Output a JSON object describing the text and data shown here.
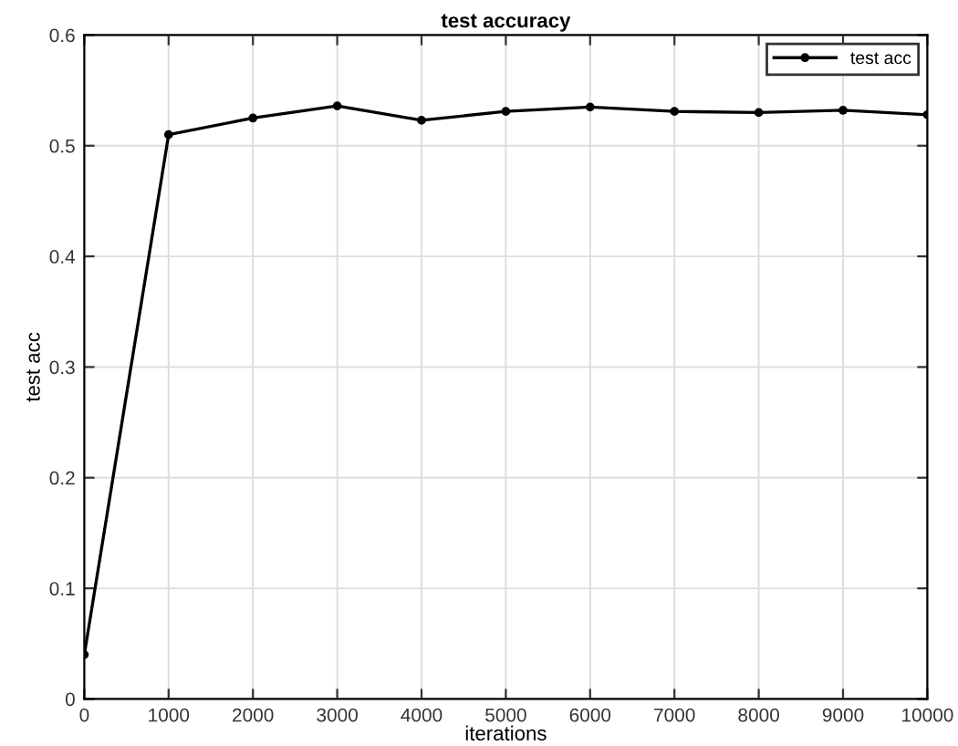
{
  "chart_data": {
    "type": "line",
    "title": "test accuracy",
    "xlabel": "iterations",
    "ylabel": "test acc",
    "x": [
      0,
      1000,
      2000,
      3000,
      4000,
      5000,
      6000,
      7000,
      8000,
      9000,
      10000
    ],
    "series": [
      {
        "name": "test acc",
        "color": "#000000",
        "values": [
          0.04,
          0.51,
          0.525,
          0.536,
          0.523,
          0.531,
          0.535,
          0.531,
          0.53,
          0.532,
          0.528
        ]
      }
    ],
    "xlim": [
      0,
      10000
    ],
    "ylim": [
      0,
      0.6
    ],
    "xticks": [
      0,
      1000,
      2000,
      3000,
      4000,
      5000,
      6000,
      7000,
      8000,
      9000,
      10000
    ],
    "yticks": [
      0,
      0.1,
      0.2,
      0.3,
      0.4,
      0.5,
      0.6
    ],
    "grid": true,
    "legend": "top right",
    "marker": "circle",
    "line_style": "solid"
  }
}
